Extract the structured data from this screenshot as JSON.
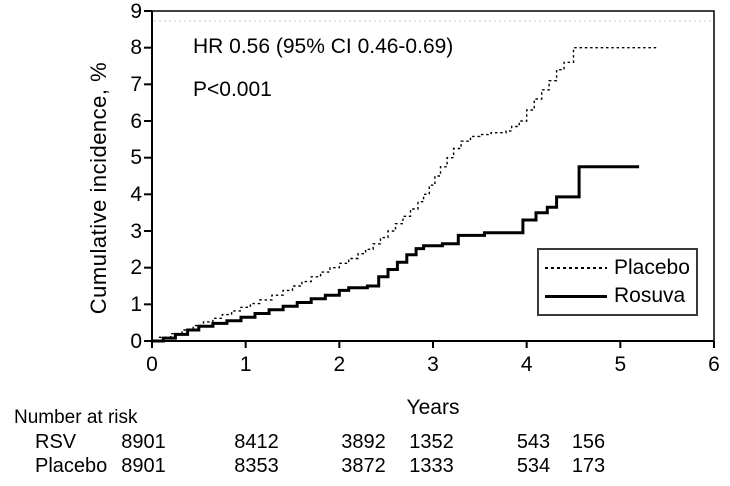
{
  "chart_data": {
    "type": "line",
    "subtype": "kaplan-meier-step",
    "ylabel": "Cumulative incidence, %",
    "xlabel": "Years",
    "xlim": [
      0,
      6
    ],
    "ylim": [
      0,
      9
    ],
    "xticks": [
      0,
      1,
      2,
      3,
      4,
      5,
      6
    ],
    "yticks": [
      0,
      1,
      2,
      3,
      4,
      5,
      6,
      7,
      8,
      9
    ],
    "grid": "off",
    "frame": "full-box",
    "annotations": [
      "HR 0.56 (95% CI 0.46-0.69)",
      "P<0.001"
    ],
    "legend": {
      "position": "lower-right",
      "entries": [
        {
          "label": "Placebo",
          "style": "dotted"
        },
        {
          "label": "Rosuva",
          "style": "solid"
        }
      ]
    },
    "series": [
      {
        "name": "Placebo",
        "line": "dotted",
        "color": "#000000",
        "points": [
          [
            0,
            0
          ],
          [
            0.08,
            0.1
          ],
          [
            0.2,
            0.2
          ],
          [
            0.32,
            0.3
          ],
          [
            0.44,
            0.42
          ],
          [
            0.55,
            0.52
          ],
          [
            0.65,
            0.62
          ],
          [
            0.75,
            0.72
          ],
          [
            0.85,
            0.82
          ],
          [
            0.95,
            0.92
          ],
          [
            1.05,
            1.02
          ],
          [
            1.15,
            1.12
          ],
          [
            1.28,
            1.25
          ],
          [
            1.4,
            1.38
          ],
          [
            1.5,
            1.5
          ],
          [
            1.6,
            1.62
          ],
          [
            1.7,
            1.75
          ],
          [
            1.8,
            1.88
          ],
          [
            1.9,
            2.0
          ],
          [
            2.0,
            2.12
          ],
          [
            2.1,
            2.25
          ],
          [
            2.2,
            2.38
          ],
          [
            2.28,
            2.5
          ],
          [
            2.36,
            2.65
          ],
          [
            2.44,
            2.82
          ],
          [
            2.52,
            3.0
          ],
          [
            2.6,
            3.2
          ],
          [
            2.68,
            3.4
          ],
          [
            2.76,
            3.6
          ],
          [
            2.84,
            3.8
          ],
          [
            2.9,
            4.0
          ],
          [
            2.96,
            4.25
          ],
          [
            3.02,
            4.5
          ],
          [
            3.08,
            4.75
          ],
          [
            3.15,
            5.0
          ],
          [
            3.22,
            5.25
          ],
          [
            3.3,
            5.45
          ],
          [
            3.4,
            5.58
          ],
          [
            3.5,
            5.63
          ],
          [
            3.62,
            5.68
          ],
          [
            3.78,
            5.73
          ],
          [
            3.84,
            5.85
          ],
          [
            3.92,
            6.0
          ],
          [
            4.0,
            6.3
          ],
          [
            4.08,
            6.6
          ],
          [
            4.16,
            6.85
          ],
          [
            4.24,
            7.1
          ],
          [
            4.32,
            7.4
          ],
          [
            4.4,
            7.6
          ],
          [
            4.5,
            8.0
          ],
          [
            5.4,
            8.0
          ]
        ]
      },
      {
        "name": "Rosuva",
        "line": "solid",
        "color": "#000000",
        "points": [
          [
            0,
            0
          ],
          [
            0.12,
            0.08
          ],
          [
            0.25,
            0.18
          ],
          [
            0.38,
            0.3
          ],
          [
            0.5,
            0.4
          ],
          [
            0.65,
            0.48
          ],
          [
            0.8,
            0.55
          ],
          [
            0.95,
            0.65
          ],
          [
            1.1,
            0.75
          ],
          [
            1.25,
            0.85
          ],
          [
            1.4,
            0.95
          ],
          [
            1.55,
            1.05
          ],
          [
            1.7,
            1.15
          ],
          [
            1.85,
            1.25
          ],
          [
            2.0,
            1.38
          ],
          [
            2.1,
            1.45
          ],
          [
            2.3,
            1.5
          ],
          [
            2.42,
            1.75
          ],
          [
            2.52,
            1.95
          ],
          [
            2.62,
            2.15
          ],
          [
            2.72,
            2.35
          ],
          [
            2.82,
            2.52
          ],
          [
            2.9,
            2.6
          ],
          [
            3.1,
            2.65
          ],
          [
            3.27,
            2.88
          ],
          [
            3.55,
            2.95
          ],
          [
            3.96,
            3.3
          ],
          [
            4.1,
            3.5
          ],
          [
            4.22,
            3.65
          ],
          [
            4.32,
            3.93
          ],
          [
            4.56,
            4.75
          ],
          [
            5.2,
            4.75
          ]
        ]
      }
    ],
    "number_at_risk": {
      "title": "Number at risk",
      "rows": [
        {
          "label": "RSV",
          "values": [
            "8901",
            "8412",
            "3892",
            "1352",
            "543",
            "156"
          ]
        },
        {
          "label": "Placebo",
          "values": [
            "8901",
            "8353",
            "3872",
            "1333",
            "534",
            "173"
          ]
        }
      ]
    },
    "colors": {
      "line": "#000000",
      "background": "#ffffff",
      "legend_border": "#3a3a3a"
    }
  }
}
